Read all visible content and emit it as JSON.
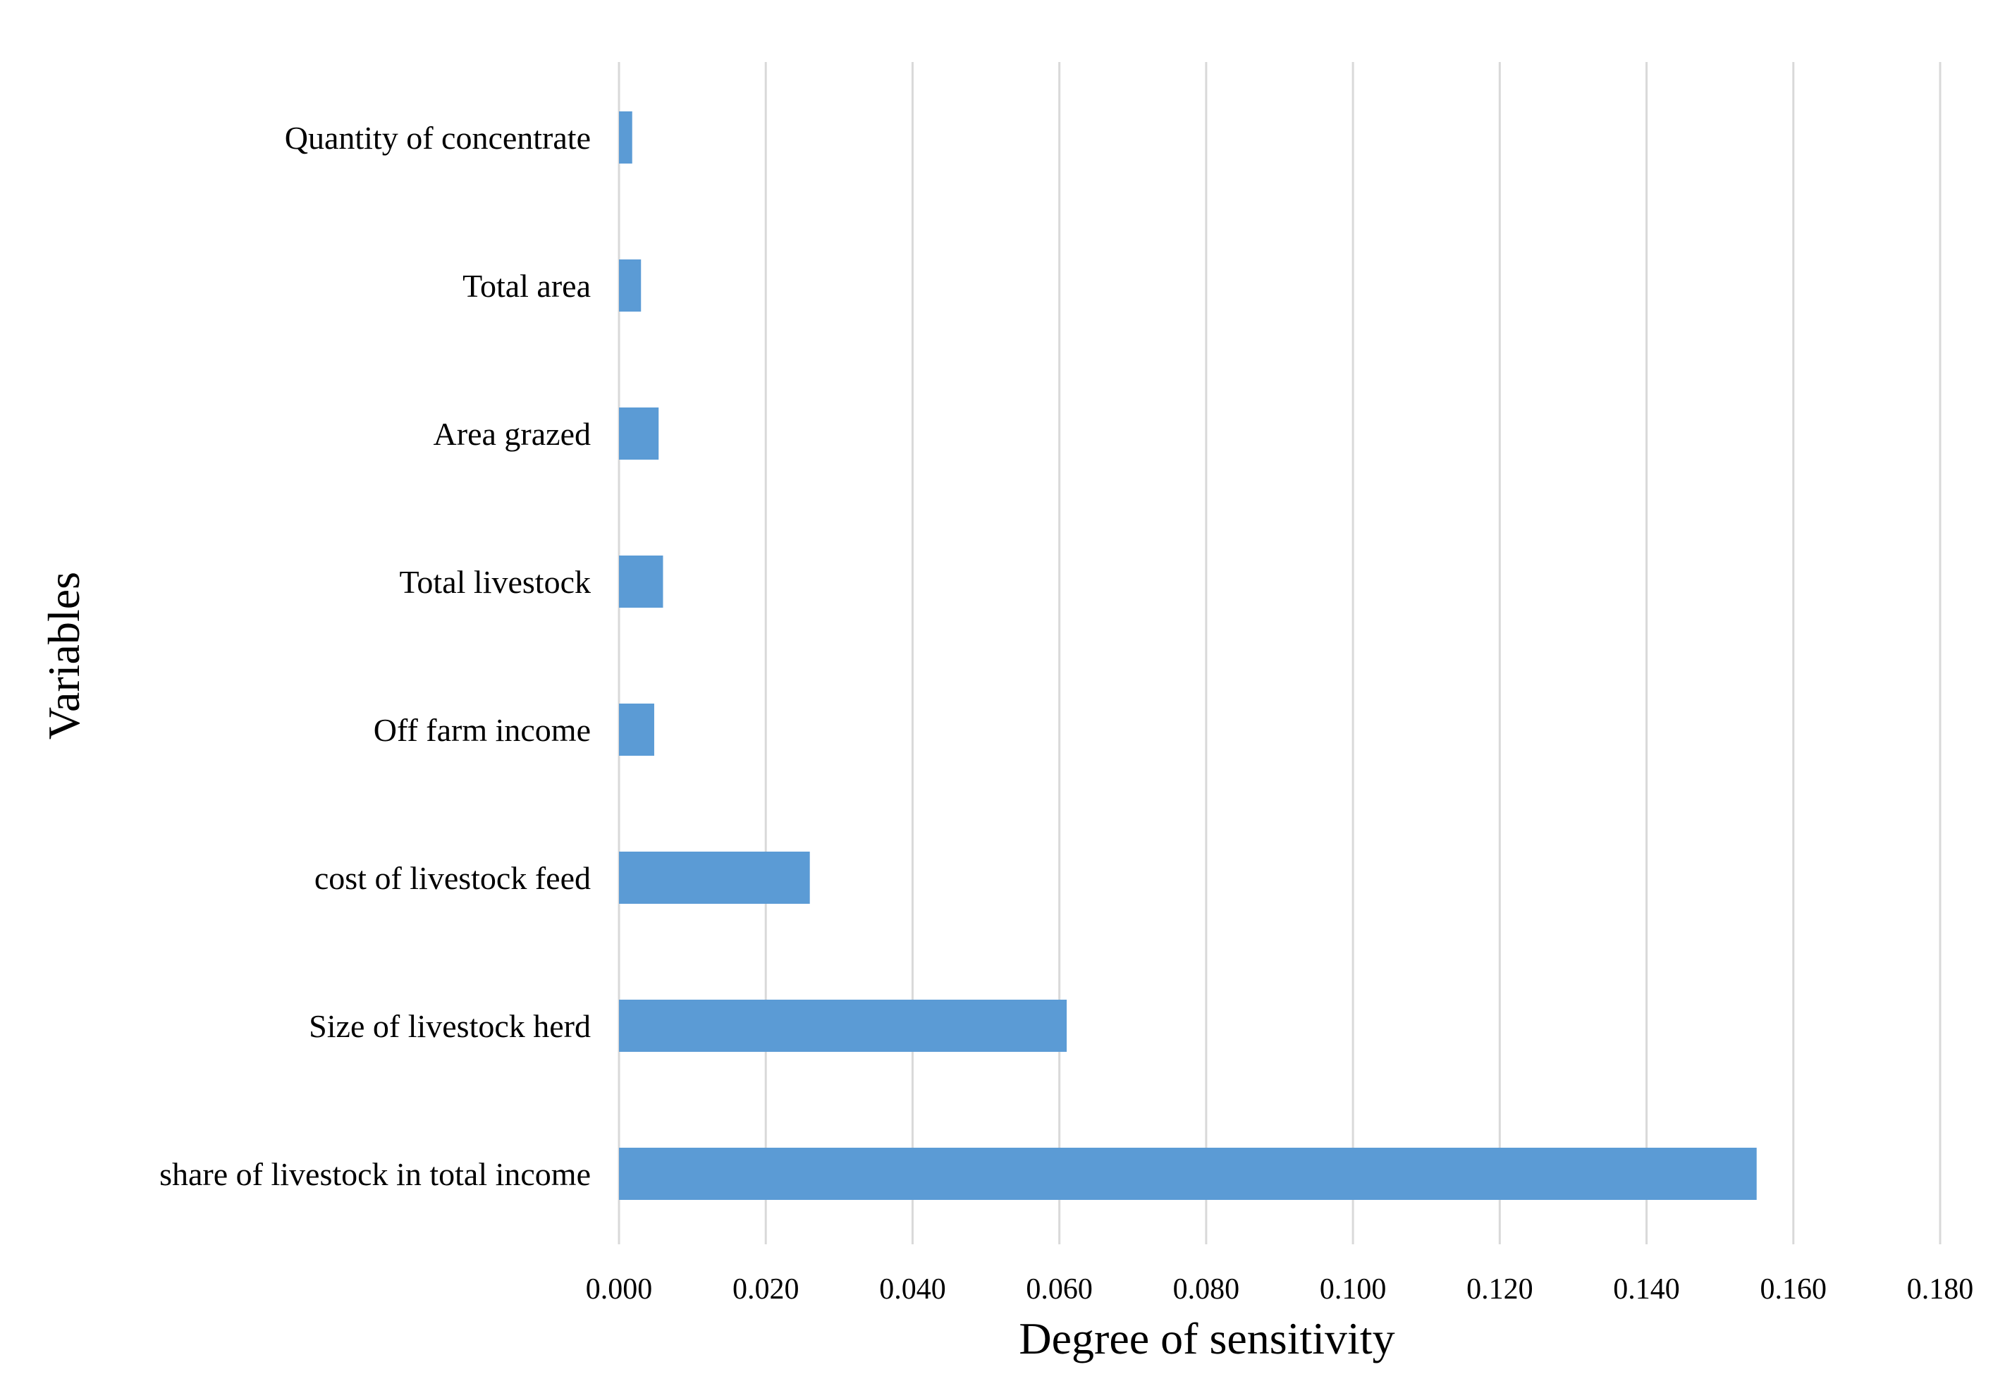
{
  "chart_data": {
    "type": "bar",
    "orientation": "horizontal",
    "title": "",
    "xlabel": "Degree of sensitivity",
    "ylabel": "Variables",
    "xlim": [
      0,
      0.18
    ],
    "x_ticks": [
      "0.000",
      "0.020",
      "0.040",
      "0.060",
      "0.080",
      "0.100",
      "0.120",
      "0.140",
      "0.160",
      "0.180"
    ],
    "grid": "vertical",
    "legend": "none",
    "bar_color": "#5b9bd5",
    "categories": [
      "Quantity of concentrate",
      "Total area",
      "Area grazed",
      "Total livestock",
      "Off farm income",
      "cost of livestock feed",
      "Size of livestock herd",
      "share of livestock in total income"
    ],
    "values": [
      0.0018,
      0.003,
      0.0054,
      0.006,
      0.0048,
      0.026,
      0.061,
      0.155
    ]
  }
}
